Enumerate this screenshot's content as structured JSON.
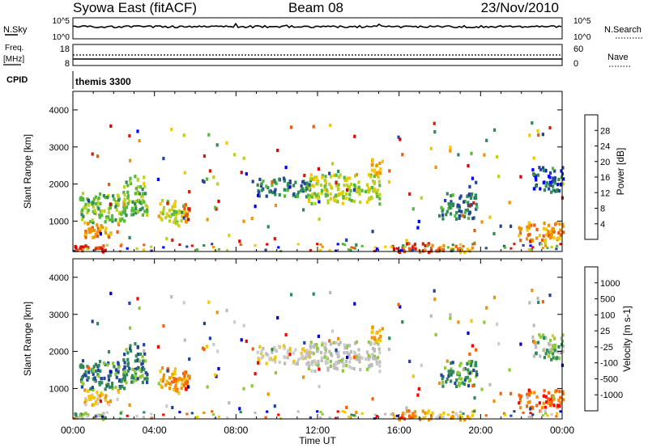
{
  "header": {
    "station": "Syowa East (fitACF)",
    "beam": "Beam 08",
    "date": "23/Nov/2010"
  },
  "sky_panel": {
    "left_label": "N.Sky",
    "left_ticks": [
      "10^5",
      "10^0"
    ],
    "right_ticks": [
      "10^5",
      "10^0"
    ],
    "right_label": "N.Search"
  },
  "freq_panel": {
    "left_label_1": "Freq.",
    "left_label_2": "[MHz]",
    "left_ticks": [
      "18",
      "8"
    ],
    "right_ticks": [
      "60",
      "0"
    ],
    "right_label": "Nave"
  },
  "cpid_panel": {
    "label": "CPID",
    "value": "themis 3300"
  },
  "colors": {
    "power_scale": [
      "#0000ff",
      "#22449a",
      "#2f8a57",
      "#55b93a",
      "#bcd11c",
      "#f2c800",
      "#f39200",
      "#e95d0f",
      "#d81c0c",
      "#e00000"
    ],
    "velocity_scale": [
      "#ff0000",
      "#ff6000",
      "#f39200",
      "#f2c800",
      "#cccccc",
      "#bbbbbb",
      "#8fc83a",
      "#2f8a57",
      "#22449a",
      "#0000cc"
    ]
  },
  "chart_data": [
    {
      "type": "heatmap",
      "name": "power",
      "ylabel": "Slant Range [km]",
      "yticks": [
        "1000",
        "2000",
        "3000",
        "4000"
      ],
      "ylim": [
        180,
        4500
      ],
      "xlim": [
        0,
        24
      ],
      "colorbar_label": "Power [dB]",
      "colorbar_ticks": [
        "4",
        "8",
        "12",
        "16",
        "20",
        "24",
        "28"
      ],
      "clusters": [
        {
          "t0": 0.0,
          "t1": 1.9,
          "r0": 200,
          "r1": 400,
          "level": 8
        },
        {
          "t0": 0.4,
          "t1": 2.2,
          "r0": 600,
          "r1": 1000,
          "level": 6
        },
        {
          "t0": 0.3,
          "t1": 2.6,
          "r0": 1000,
          "r1": 1800,
          "level": 3
        },
        {
          "t0": 2.4,
          "t1": 3.6,
          "r0": 1200,
          "r1": 2300,
          "level": 3
        },
        {
          "t0": 4.2,
          "t1": 5.6,
          "r0": 900,
          "r1": 1600,
          "level": 4
        },
        {
          "t0": 5.4,
          "t1": 5.7,
          "r0": 900,
          "r1": 1600,
          "level": 7
        },
        {
          "t0": 9.0,
          "t1": 11.6,
          "r0": 1700,
          "r1": 2200,
          "level": 2
        },
        {
          "t0": 11.5,
          "t1": 15.0,
          "r0": 1500,
          "r1": 2300,
          "level": 4
        },
        {
          "t0": 14.6,
          "t1": 15.2,
          "r0": 2300,
          "r1": 2800,
          "level": 5
        },
        {
          "t0": 15.6,
          "t1": 17.6,
          "r0": 200,
          "r1": 450,
          "level": 8
        },
        {
          "t0": 17.2,
          "t1": 19.6,
          "r0": 200,
          "r1": 400,
          "level": 6
        },
        {
          "t0": 18.0,
          "t1": 19.8,
          "r0": 1100,
          "r1": 1800,
          "level": 2
        },
        {
          "t0": 21.8,
          "t1": 24.0,
          "r0": 500,
          "r1": 1000,
          "level": 6
        },
        {
          "t0": 22.5,
          "t1": 24.0,
          "r0": 1800,
          "r1": 2500,
          "level": 1
        }
      ]
    },
    {
      "type": "heatmap",
      "name": "velocity",
      "ylabel": "Slant Range [km]",
      "yticks": [
        "1000",
        "2000",
        "3000",
        "4000"
      ],
      "ylim": [
        180,
        4500
      ],
      "xlim": [
        0,
        24
      ],
      "xticks": [
        "00:00",
        "04:00",
        "08:00",
        "12:00",
        "16:00",
        "20:00",
        "00:00"
      ],
      "xlabel": "Time UT",
      "colorbar_label": "Velocity [m s-1]",
      "colorbar_ticks": [
        "-1000",
        "-500",
        "-100",
        "-25",
        "25",
        "100",
        "500",
        "1000"
      ],
      "clusters": [
        {
          "t0": 0.0,
          "t1": 1.9,
          "r0": 200,
          "r1": 400,
          "level": 6
        },
        {
          "t0": 0.4,
          "t1": 2.2,
          "r0": 600,
          "r1": 1000,
          "level": 3
        },
        {
          "t0": 0.3,
          "t1": 2.6,
          "r0": 1000,
          "r1": 1800,
          "level": 7
        },
        {
          "t0": 2.4,
          "t1": 3.6,
          "r0": 1200,
          "r1": 2300,
          "level": 7
        },
        {
          "t0": 4.2,
          "t1": 5.6,
          "r0": 900,
          "r1": 1600,
          "level": 2
        },
        {
          "t0": 5.4,
          "t1": 5.7,
          "r0": 900,
          "r1": 1600,
          "level": 1
        },
        {
          "t0": 9.0,
          "t1": 11.6,
          "r0": 1700,
          "r1": 2200,
          "level": 4
        },
        {
          "t0": 11.5,
          "t1": 15.0,
          "r0": 1500,
          "r1": 2300,
          "level": 5
        },
        {
          "t0": 14.6,
          "t1": 15.2,
          "r0": 2300,
          "r1": 2800,
          "level": 2
        },
        {
          "t0": 15.6,
          "t1": 17.6,
          "r0": 200,
          "r1": 450,
          "level": 2
        },
        {
          "t0": 17.2,
          "t1": 19.6,
          "r0": 200,
          "r1": 400,
          "level": 3
        },
        {
          "t0": 18.0,
          "t1": 19.8,
          "r0": 1100,
          "r1": 1800,
          "level": 7
        },
        {
          "t0": 21.8,
          "t1": 24.0,
          "r0": 500,
          "r1": 1000,
          "level": 1
        },
        {
          "t0": 22.5,
          "t1": 24.0,
          "r0": 1800,
          "r1": 2500,
          "level": 6
        }
      ]
    }
  ]
}
